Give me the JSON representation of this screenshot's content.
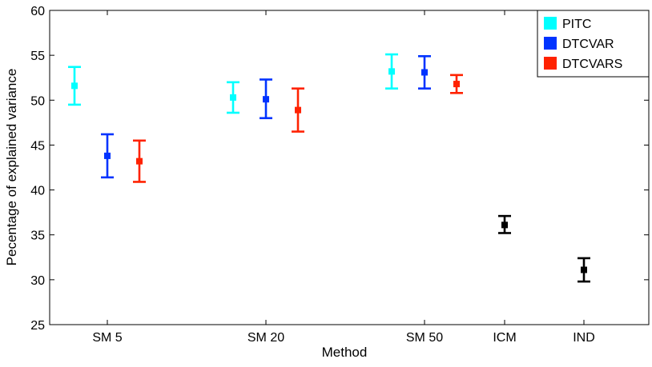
{
  "chart_data": {
    "type": "scatter",
    "subtype": "errorbar",
    "title": "",
    "xlabel": "Method",
    "ylabel": "Pecentage of explained variance",
    "ylim": [
      25,
      60
    ],
    "yticks": [
      25,
      30,
      35,
      40,
      45,
      50,
      55,
      60
    ],
    "categories": [
      "SM 5",
      "SM 20",
      "SM 50",
      "ICM",
      "IND"
    ],
    "grid": false,
    "legend_position": "top-right",
    "series": [
      {
        "name": "PITC",
        "color": "#00FFFF",
        "points": [
          {
            "category": "SM 5",
            "y": 51.6,
            "low": 49.5,
            "high": 53.7
          },
          {
            "category": "SM 20",
            "y": 50.3,
            "low": 48.6,
            "high": 52.0
          },
          {
            "category": "SM 50",
            "y": 53.2,
            "low": 51.3,
            "high": 55.1
          }
        ]
      },
      {
        "name": "DTCVAR",
        "color": "#0033FF",
        "points": [
          {
            "category": "SM 5",
            "y": 43.8,
            "low": 41.4,
            "high": 46.2
          },
          {
            "category": "SM 20",
            "y": 50.1,
            "low": 48.0,
            "high": 52.3
          },
          {
            "category": "SM 50",
            "y": 53.1,
            "low": 51.3,
            "high": 54.9
          }
        ]
      },
      {
        "name": "DTCVARS",
        "color": "#FF2200",
        "points": [
          {
            "category": "SM 5",
            "y": 43.2,
            "low": 40.9,
            "high": 45.5
          },
          {
            "category": "SM 20",
            "y": 48.9,
            "low": 46.5,
            "high": 51.3
          },
          {
            "category": "SM 50",
            "y": 51.8,
            "low": 50.8,
            "high": 52.8
          }
        ]
      },
      {
        "color": "#000000",
        "points": [
          {
            "category": "ICM",
            "y": 36.1,
            "low": 35.2,
            "high": 37.1
          },
          {
            "category": "IND",
            "y": 31.1,
            "low": 29.8,
            "high": 32.4
          }
        ]
      }
    ]
  }
}
